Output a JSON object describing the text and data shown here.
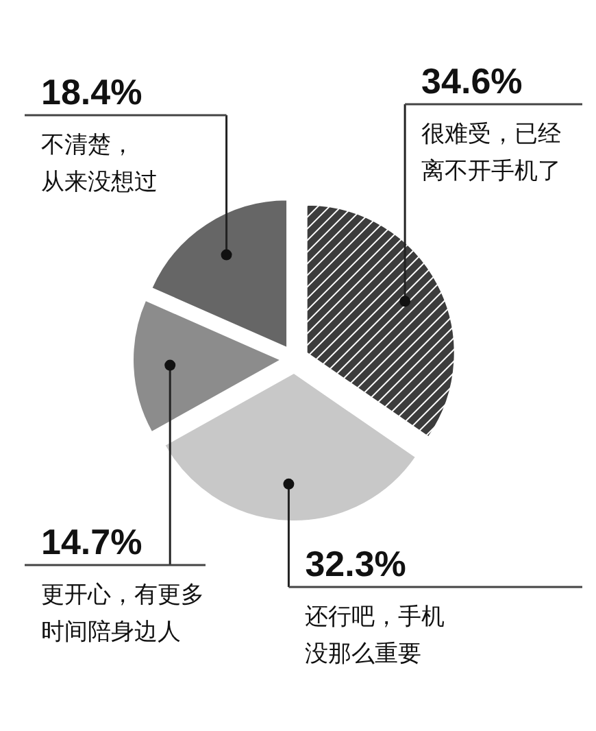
{
  "chart_data": {
    "type": "pie",
    "categories": [
      "很难受，已经离不开手机了",
      "还行吧，手机没那么重要",
      "更开心，有更多时间陪身边人",
      "不清楚，从来没想过"
    ],
    "values": [
      34.6,
      32.3,
      14.7,
      18.4
    ],
    "value_labels": [
      "34.6%",
      "32.3%",
      "14.7%",
      "18.4%"
    ],
    "colors": [
      "#3c3c3c",
      "#c8c8c8",
      "#8c8c8c",
      "#666666"
    ]
  }
}
